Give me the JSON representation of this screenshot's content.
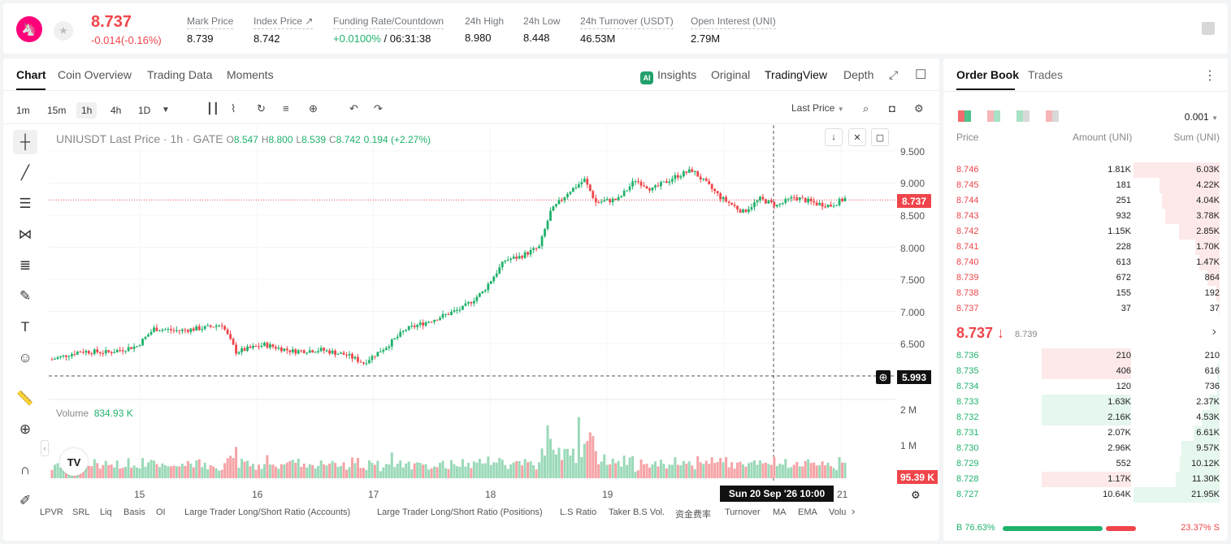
{
  "ticker": {
    "price": "8.737",
    "change": "-0.014(-0.16%)"
  },
  "stats": [
    {
      "label": "Mark Price",
      "value": "8.739"
    },
    {
      "label": "Index Price ↗",
      "value": "8.742"
    },
    {
      "label": "Funding Rate/Countdown",
      "value_green": "+0.0100%",
      "value": " / 06:31:38"
    },
    {
      "label": "24h High",
      "value": "8.980"
    },
    {
      "label": "24h Low",
      "value": "8.448"
    },
    {
      "label": "24h Turnover (USDT)",
      "value": "46.53M"
    },
    {
      "label": "Open Interest (UNI)",
      "value": "2.79M"
    }
  ],
  "chart_tabs": [
    "Chart",
    "Coin Overview",
    "Trading Data",
    "Moments"
  ],
  "view_tabs": [
    "Insights",
    "Original",
    "TradingView",
    "Depth"
  ],
  "timeframes": [
    "1m",
    "15m",
    "1h",
    "4h",
    "1D"
  ],
  "last_price_dropdown": "Last Price",
  "legend": {
    "symbol": "UNIUSDT Last Price · 1h · GATE",
    "o": "8.547",
    "h": "8.800",
    "l": "8.539",
    "c": "8.742",
    "chg": "0.194 (+2.27%)"
  },
  "volume": {
    "label": "Volume",
    "value": "834.93 K"
  },
  "yaxis": [
    "9.500",
    "9.000",
    "8.500",
    "8.000",
    "7.500",
    "7.000",
    "6.500"
  ],
  "vol_axis": [
    "2 M",
    "1 M"
  ],
  "last_tag": "8.737",
  "cross_tag": "5.993",
  "vol_tag": "95.39 K",
  "xaxis": [
    "15",
    "16",
    "17",
    "18",
    "19",
    "21"
  ],
  "crosshair_date": "Sun 20 Sep '26    10:00",
  "bottom_items": [
    "LPVR",
    "SRL",
    "Liq",
    "Basis",
    "OI",
    "Large Trader Long/Short Ratio (Accounts)",
    "Large Trader Long/Short Ratio (Positions)",
    "L.S Ratio",
    "Taker B.S Vol.",
    "资金费率",
    "Turnover",
    "MA",
    "EMA",
    "Volu"
  ],
  "orderbook": {
    "tabs": [
      "Order Book",
      "Trades"
    ],
    "precision": "0.001",
    "headers": [
      "Price",
      "Amount (UNI)",
      "Sum (UNI)"
    ],
    "asks": [
      {
        "p": "8.746",
        "a": "1.81K",
        "s": "6.03K",
        "sf": 1.0
      },
      {
        "p": "8.745",
        "a": "181",
        "s": "4.22K",
        "sf": 0.7
      },
      {
        "p": "8.744",
        "a": "251",
        "s": "4.04K",
        "sf": 0.67
      },
      {
        "p": "8.743",
        "a": "932",
        "s": "3.78K",
        "sf": 0.63
      },
      {
        "p": "8.742",
        "a": "1.15K",
        "s": "2.85K",
        "sf": 0.47
      },
      {
        "p": "8.741",
        "a": "228",
        "s": "1.70K",
        "sf": 0.28
      },
      {
        "p": "8.740",
        "a": "613",
        "s": "1.47K",
        "sf": 0.24
      },
      {
        "p": "8.739",
        "a": "672",
        "s": "864",
        "sf": 0.14
      },
      {
        "p": "8.738",
        "a": "155",
        "s": "192",
        "sf": 0.04
      },
      {
        "p": "8.737",
        "a": "37",
        "s": "37",
        "sf": 0.01
      }
    ],
    "mid": "8.737 ↓",
    "mark": "8.739",
    "bids": [
      {
        "p": "8.736",
        "a": "210",
        "s": "210",
        "sf": 0.01,
        "af": 1.0,
        "ac": "red"
      },
      {
        "p": "8.735",
        "a": "406",
        "s": "616",
        "sf": 0.03,
        "af": 1.0,
        "ac": "red"
      },
      {
        "p": "8.734",
        "a": "120",
        "s": "736",
        "sf": 0.03,
        "af": 0,
        "ac": "none"
      },
      {
        "p": "8.733",
        "a": "1.63K",
        "s": "2.37K",
        "sf": 0.11,
        "af": 1.0,
        "ac": "green"
      },
      {
        "p": "8.732",
        "a": "2.16K",
        "s": "4.53K",
        "sf": 0.21,
        "af": 1.0,
        "ac": "green"
      },
      {
        "p": "8.731",
        "a": "2.07K",
        "s": "6.61K",
        "sf": 0.3,
        "af": 0,
        "ac": "none"
      },
      {
        "p": "8.730",
        "a": "2.96K",
        "s": "9.57K",
        "sf": 0.44,
        "af": 0,
        "ac": "none"
      },
      {
        "p": "8.729",
        "a": "552",
        "s": "10.12K",
        "sf": 0.46,
        "af": 0,
        "ac": "none"
      },
      {
        "p": "8.728",
        "a": "1.17K",
        "s": "11.30K",
        "sf": 0.51,
        "af": 1.0,
        "ac": "red"
      },
      {
        "p": "8.727",
        "a": "10.64K",
        "s": "21.95K",
        "sf": 1.0,
        "af": 0,
        "ac": "none"
      }
    ],
    "buy_ratio": "B 76.63%",
    "sell_ratio": "23.37% S",
    "buy_fraction": 0.7663
  },
  "chart_data": {
    "type": "candlestick",
    "title": "UNIUSDT Last Price · 1h · GATE",
    "ylim": [
      5.9,
      9.6
    ],
    "anchors": [
      [
        0,
        6.25
      ],
      [
        10,
        6.38
      ],
      [
        20,
        6.36
      ],
      [
        30,
        6.46
      ],
      [
        36,
        6.73
      ],
      [
        45,
        6.7
      ],
      [
        55,
        6.75
      ],
      [
        60,
        6.8
      ],
      [
        65,
        6.37
      ],
      [
        75,
        6.48
      ],
      [
        85,
        6.38
      ],
      [
        95,
        6.4
      ],
      [
        104,
        6.32
      ],
      [
        110,
        6.2
      ],
      [
        118,
        6.45
      ],
      [
        125,
        6.72
      ],
      [
        135,
        6.88
      ],
      [
        145,
        7.05
      ],
      [
        152,
        7.3
      ],
      [
        160,
        7.8
      ],
      [
        165,
        7.85
      ],
      [
        172,
        8.0
      ],
      [
        176,
        8.55
      ],
      [
        182,
        8.85
      ],
      [
        188,
        9.05
      ],
      [
        192,
        8.7
      ],
      [
        200,
        8.75
      ],
      [
        206,
        9.05
      ],
      [
        212,
        8.9
      ],
      [
        220,
        9.1
      ],
      [
        226,
        9.2
      ],
      [
        232,
        8.95
      ],
      [
        236,
        8.78
      ],
      [
        244,
        8.55
      ],
      [
        250,
        8.75
      ],
      [
        256,
        8.65
      ],
      [
        262,
        8.78
      ],
      [
        270,
        8.68
      ],
      [
        275,
        8.65
      ],
      [
        280,
        8.76
      ]
    ],
    "candles": 281,
    "vol_max": 2000000
  }
}
